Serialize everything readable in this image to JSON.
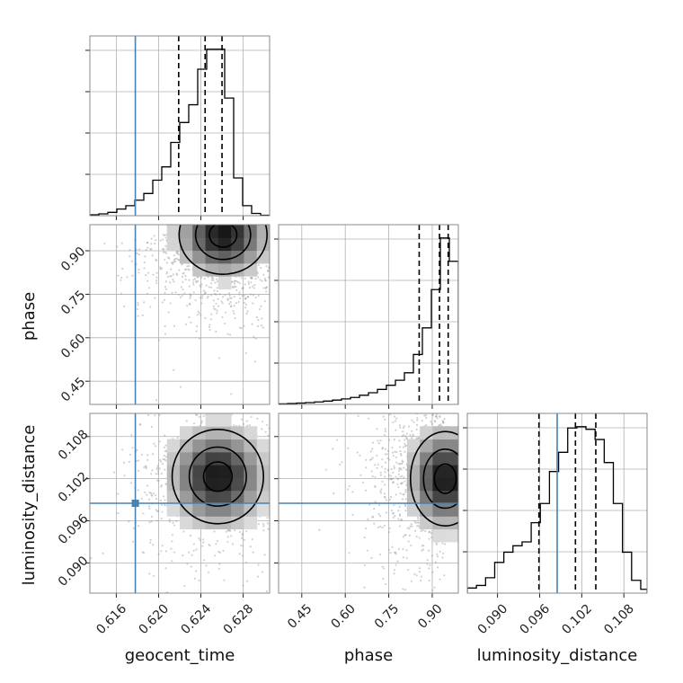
{
  "chart_data": {
    "type": "corner",
    "parameters": [
      "geocent_time",
      "phase",
      "luminosity_distance"
    ],
    "truths": {
      "geocent_time": 0.6178,
      "phase": null,
      "luminosity_distance": 0.0985
    },
    "ranges": {
      "geocent_time": [
        0.6135,
        0.6305
      ],
      "phase": [
        0.37,
        0.99
      ],
      "luminosity_distance": [
        0.0857,
        0.1113
      ]
    },
    "ticks": {
      "geocent_time": {
        "values": [
          0.616,
          0.62,
          0.624,
          0.628
        ],
        "labels": [
          "0.616",
          "0.620",
          "0.624",
          "0.628"
        ]
      },
      "phase_y": {
        "values": [
          0.45,
          0.6,
          0.75,
          0.9
        ],
        "labels": [
          "0.45",
          "0.60",
          "0.75",
          "0.90"
        ]
      },
      "phase_x": {
        "values": [
          0.45,
          0.6,
          0.75,
          0.9
        ],
        "labels": [
          "0.45",
          "0.60",
          "0.75",
          "0.90"
        ]
      },
      "luminosity_distance_y": {
        "values": [
          0.09,
          0.096,
          0.102,
          0.108
        ],
        "labels": [
          "0.090",
          "0.096",
          "0.102",
          "0.108"
        ]
      },
      "luminosity_distance_x": {
        "values": [
          0.09,
          0.096,
          0.102,
          0.108
        ],
        "labels": [
          "0.090",
          "0.096",
          "0.102",
          "0.108"
        ]
      }
    },
    "quantiles": {
      "geocent_time": [
        0.6219,
        0.6244,
        0.626
      ],
      "phase": [
        0.855,
        0.925,
        0.955
      ],
      "luminosity_distance": [
        0.0959,
        0.1011,
        0.104
      ]
    },
    "histograms": {
      "geocent_time": {
        "edges": [
          0.6135,
          0.61435,
          0.6152,
          0.61605,
          0.6169,
          0.61775,
          0.6186,
          0.61945,
          0.6203,
          0.62115,
          0.622,
          0.62285,
          0.6237,
          0.62455,
          0.6254,
          0.62625,
          0.6271,
          0.62795,
          0.6288,
          0.62965,
          0.6305
        ],
        "counts": [
          0.4,
          0.8,
          1.5,
          3,
          4.5,
          7,
          10,
          16,
          22,
          33,
          42,
          50,
          66,
          75,
          75,
          53,
          17,
          4.5,
          1,
          0.2
        ]
      },
      "phase": {
        "edges": [
          0.37,
          0.401,
          0.432,
          0.463,
          0.494,
          0.525,
          0.556,
          0.587,
          0.618,
          0.649,
          0.68,
          0.711,
          0.742,
          0.773,
          0.804,
          0.835,
          0.866,
          0.897,
          0.928,
          0.959,
          0.99
        ],
        "counts": [
          0.3,
          0.5,
          0.8,
          1.1,
          1.5,
          2,
          2.6,
          3.3,
          4.2,
          5.5,
          7,
          9,
          11.5,
          14.5,
          19,
          30,
          46,
          69,
          100,
          86
        ]
      },
      "luminosity_distance": {
        "edges": [
          0.0857,
          0.087,
          0.0883,
          0.0896,
          0.0909,
          0.0922,
          0.0935,
          0.0948,
          0.0961,
          0.0974,
          0.0987,
          0.1,
          0.1013,
          0.1026,
          0.1039,
          0.1052,
          0.1065,
          0.1078,
          0.1091,
          0.1104,
          0.1113
        ],
        "counts": [
          4,
          6,
          12,
          24,
          32,
          37,
          40,
          55,
          70,
          95,
          110,
          129,
          130,
          128,
          120,
          102,
          70,
          32,
          10,
          3
        ]
      }
    },
    "pairs": [
      {
        "x": "geocent_time",
        "y": "phase",
        "center": [
          0.6261,
          0.955
        ],
        "spread": [
          0.0026,
          0.085
        ]
      },
      {
        "x": "geocent_time",
        "y": "luminosity_distance",
        "center": [
          0.6256,
          0.1023
        ],
        "spread": [
          0.0027,
          0.0042
        ]
      },
      {
        "x": "phase",
        "y": "luminosity_distance",
        "center": [
          0.945,
          0.102
        ],
        "spread": [
          0.075,
          0.0042
        ]
      }
    ],
    "colors": {
      "truth": "#4682b4",
      "line": "#000000",
      "grid": "#b0b0b0",
      "points": "#9a9a9a"
    },
    "grid": true,
    "xlabels": [
      "geocent_time",
      "phase",
      "luminosity_distance"
    ],
    "ylabels": [
      "phase",
      "luminosity_distance"
    ]
  }
}
